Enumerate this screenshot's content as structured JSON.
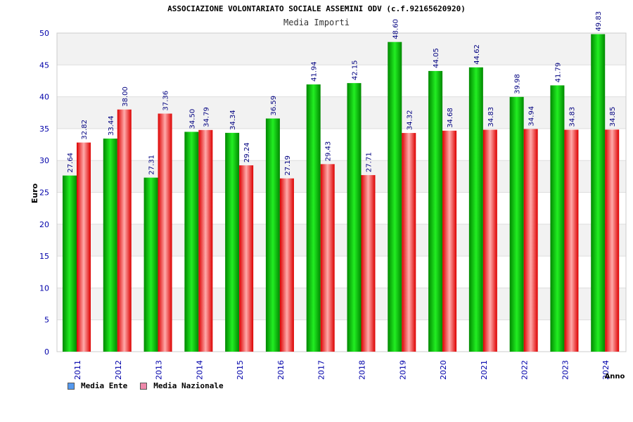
{
  "title": "ASSOCIAZIONE VOLONTARIATO SOCIALE ASSEMINI ODV (c.f.92165620920)",
  "chart_data": {
    "type": "bar",
    "title": "ASSOCIAZIONE VOLONTARIATO SOCIALE ASSEMINI ODV (c.f.92165620920)",
    "subtitle": "Media Importi",
    "xlabel": "Anno",
    "ylabel": "Euro",
    "ylim": [
      0,
      50
    ],
    "yticks": [
      0,
      5,
      10,
      15,
      20,
      25,
      30,
      35,
      40,
      45,
      50
    ],
    "grid": true,
    "legend_position": "bottom-left",
    "categories": [
      "2011",
      "2012",
      "2013",
      "2014",
      "2015",
      "2016",
      "2017",
      "2018",
      "2019",
      "2020",
      "2021",
      "2022",
      "2023",
      "2024"
    ],
    "series": [
      {
        "name": "Media Ente",
        "values": [
          27.64,
          33.44,
          27.31,
          34.5,
          34.34,
          36.59,
          41.94,
          42.15,
          48.6,
          44.05,
          44.62,
          39.98,
          41.79,
          49.83
        ],
        "labels": [
          "27.64",
          "33.44",
          "27.31",
          "34.50",
          "34.34",
          "36.59",
          "41.94",
          "42.15",
          "48.60",
          "44.05",
          "44.62",
          "39.98",
          "41.79",
          "49.83"
        ],
        "legend_color": "#5599ee",
        "color_dark": "#008800",
        "color_light": "#22ee22"
      },
      {
        "name": "Media Nazionale",
        "values": [
          32.82,
          38.0,
          37.36,
          34.79,
          29.24,
          27.19,
          29.43,
          27.71,
          34.32,
          34.68,
          34.83,
          34.94,
          34.83,
          34.85
        ],
        "labels": [
          "32.82",
          "38.00",
          "37.36",
          "34.79",
          "29.24",
          "27.19",
          "29.43",
          "27.71",
          "34.32",
          "34.68",
          "34.83",
          "34.94",
          "34.83",
          "34.85"
        ],
        "legend_color": "#ee88aa",
        "color_dark": "#dd0000",
        "color_light": "#ffaaaa"
      }
    ]
  },
  "colors": {
    "axis_text": "#0000aa",
    "value_label": "#000080",
    "grid": "#dddddd",
    "band": "#f2f2f2",
    "frame": "#cccccc"
  }
}
